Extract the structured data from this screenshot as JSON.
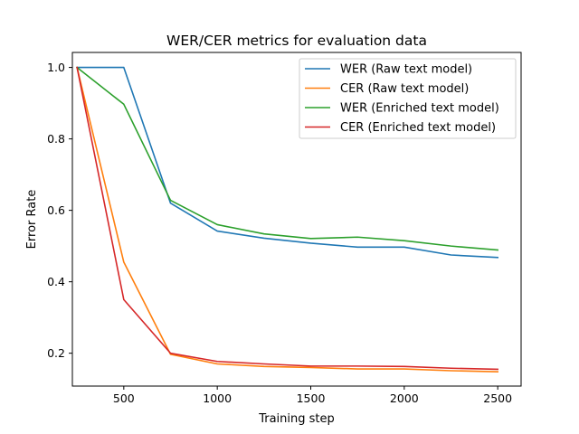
{
  "chart_data": {
    "type": "line",
    "title": "WER/CER metrics for evaluation data",
    "xlabel": "Training step",
    "ylabel": "Error Rate",
    "xlim": [
      225,
      2625
    ],
    "ylim": [
      0.108,
      1.042
    ],
    "xticks": [
      500,
      1000,
      1500,
      2000,
      2500
    ],
    "yticks": [
      0.2,
      0.4,
      0.6,
      0.8,
      1.0
    ],
    "xtick_labels": [
      "500",
      "1000",
      "1500",
      "2000",
      "2500"
    ],
    "ytick_labels": [
      "0.2",
      "0.4",
      "0.6",
      "0.8",
      "1.0"
    ],
    "grid": false,
    "legend_position": "top-right",
    "x": [
      250,
      500,
      750,
      1000,
      1250,
      1500,
      1750,
      2000,
      2250,
      2500
    ],
    "series": [
      {
        "name": "WER (Raw text model)",
        "color": "#1f77b4",
        "values": [
          1.0,
          1.0,
          0.62,
          0.542,
          0.522,
          0.508,
          0.497,
          0.497,
          0.475,
          0.468
        ]
      },
      {
        "name": "CER (Raw text model)",
        "color": "#ff7f0e",
        "values": [
          1.0,
          0.455,
          0.197,
          0.17,
          0.163,
          0.16,
          0.156,
          0.156,
          0.151,
          0.148
        ]
      },
      {
        "name": "WER (Enriched text model)",
        "color": "#2ca02c",
        "values": [
          1.0,
          0.897,
          0.628,
          0.56,
          0.534,
          0.521,
          0.525,
          0.515,
          0.5,
          0.489
        ]
      },
      {
        "name": "CER (Enriched text model)",
        "color": "#d62728",
        "values": [
          1.0,
          0.35,
          0.2,
          0.177,
          0.17,
          0.164,
          0.164,
          0.163,
          0.158,
          0.155
        ]
      }
    ]
  }
}
